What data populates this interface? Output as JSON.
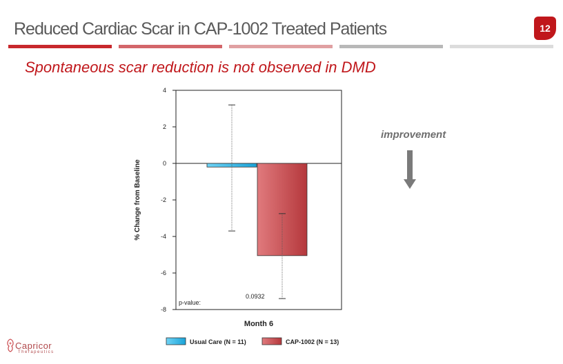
{
  "slide": {
    "title": "Reduced Cardiac Scar in CAP-1002 Treated Patients",
    "page_number": "12",
    "subtitle": "Spontaneous scar reduction is not observed in DMD",
    "improvement_label": "improvement",
    "rule_colors": [
      "#c8282d",
      "#d3666a",
      "#e0a0a2",
      "#b8b8b8",
      "#dcdcdc"
    ]
  },
  "chart_data": {
    "type": "bar",
    "categories": [
      "Month 6"
    ],
    "xlabel": "Month 6",
    "ylabel": "% Change from Baseline",
    "ylim": [
      -8,
      4
    ],
    "yticks": [
      4,
      2,
      0,
      -2,
      -4,
      -6,
      -8
    ],
    "series": [
      {
        "name": "Usual Care (N = 11)",
        "values": [
          -0.2
        ],
        "error": [
          [
            -3.7,
            3.2
          ]
        ],
        "color": "#29b6e8"
      },
      {
        "name": "CAP-1002 (N = 13)",
        "values": [
          -5.05
        ],
        "error": [
          [
            -7.4,
            -2.75
          ]
        ],
        "color": "#c9484c"
      }
    ],
    "annotations": {
      "p_value_label": "p-value:",
      "p_value": "0.0932"
    },
    "legend_position": "bottom"
  },
  "logo": {
    "name": "Capricor",
    "tagline": "Therapeutics"
  }
}
